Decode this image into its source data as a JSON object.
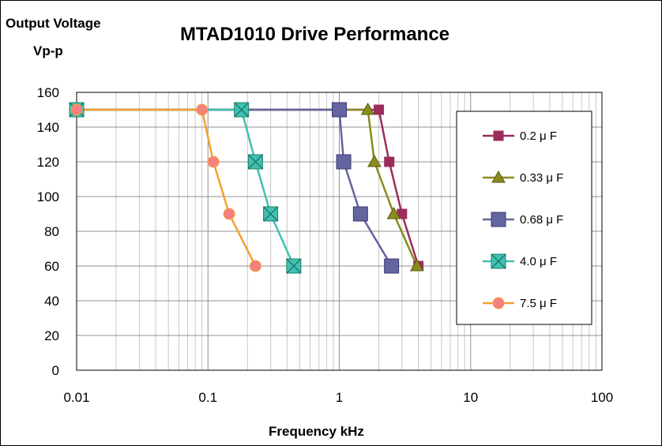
{
  "chart_data": {
    "type": "line",
    "title": "MTAD1010   Drive Performance",
    "ylabel_lines": [
      "Output Voltage",
      "Vp-p"
    ],
    "xlabel": "Frequency   kHz",
    "xscale": "log",
    "xlim": [
      0.01,
      100
    ],
    "ylim": [
      0,
      160
    ],
    "x_ticks": [
      0.01,
      0.1,
      1,
      10,
      100
    ],
    "x_tick_labels": [
      "0.01",
      "0.1",
      "1",
      "10",
      "100"
    ],
    "y_ticks": [
      0,
      20,
      40,
      60,
      80,
      100,
      120,
      140,
      160
    ],
    "y_tick_labels": [
      "0",
      "20",
      "40",
      "60",
      "80",
      "100",
      "120",
      "140",
      "160"
    ],
    "grid": true,
    "legend_position": "right",
    "series": [
      {
        "name": "0.2 μ F",
        "color": "#9b2d5c",
        "marker": "square-small",
        "x": [
          0.01,
          2.0,
          2.4,
          3.0,
          4.0
        ],
        "y": [
          150,
          150,
          120,
          90,
          60
        ]
      },
      {
        "name": "0.33 μ F",
        "color": "#8a8a1e",
        "marker": "triangle",
        "x": [
          0.01,
          1.65,
          1.85,
          2.6,
          3.9
        ],
        "y": [
          150,
          150,
          120,
          90,
          60
        ]
      },
      {
        "name": "0.68 μ F",
        "color": "#6464a0",
        "marker": "square-large",
        "x": [
          0.01,
          1.0,
          1.08,
          1.45,
          2.5
        ],
        "y": [
          150,
          150,
          120,
          90,
          60
        ]
      },
      {
        "name": "4.0 μ F",
        "color": "#40c0b0",
        "marker": "square-x",
        "x": [
          0.01,
          0.18,
          0.23,
          0.3,
          0.45
        ],
        "y": [
          150,
          150,
          120,
          90,
          60
        ]
      },
      {
        "name": "7.5 μ F",
        "color": "#f5a030",
        "marker": "circle",
        "x": [
          0.01,
          0.09,
          0.11,
          0.145,
          0.23
        ],
        "y": [
          150,
          150,
          120,
          90,
          60
        ]
      }
    ]
  }
}
